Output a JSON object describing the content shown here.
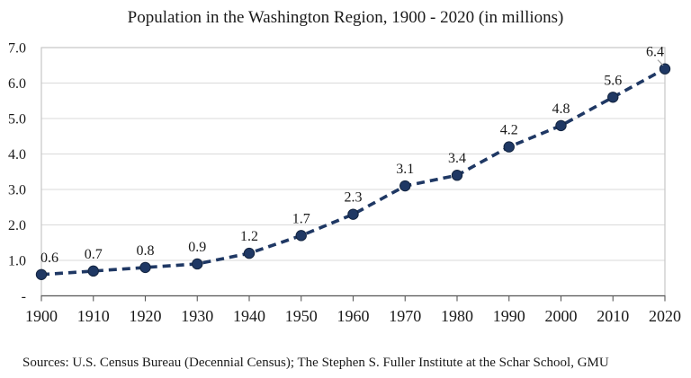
{
  "chart_data": {
    "type": "line",
    "title": "Population in the Washington Region, 1900 - 2020 (in millions)",
    "series_name": "Population",
    "categories": [
      "1900",
      "1910",
      "1920",
      "1930",
      "1940",
      "1950",
      "1960",
      "1970",
      "1980",
      "1990",
      "2000",
      "2010",
      "2020"
    ],
    "values": [
      0.6,
      0.7,
      0.8,
      0.9,
      1.2,
      1.7,
      2.3,
      3.1,
      3.4,
      4.2,
      4.8,
      5.6,
      6.4
    ],
    "data_labels": [
      "0.6",
      "0.7",
      "0.8",
      "0.9",
      "1.2",
      "1.7",
      "2.3",
      "3.1",
      "3.4",
      "4.2",
      "4.8",
      "5.6",
      "6.4"
    ],
    "ylim": [
      0,
      7
    ],
    "y_tick_labels": [
      "-",
      "1.0",
      "2.0",
      "3.0",
      "4.0",
      "5.0",
      "6.0",
      "7.0"
    ],
    "grid": "horizontal",
    "legend": "none",
    "line_style": "dashed",
    "marker": "circle"
  },
  "source_note": "Sources: U.S. Census Bureau (Decennial Census); The Stephen S. Fuller Institute at the Schar School, GMU",
  "colors": {
    "line": "#1f3864",
    "marker_fill": "#1f3864",
    "marker_edge": "#13243f",
    "gridline": "#d9d9d9",
    "plot_border": "#c6c6c6",
    "axis": "#595959",
    "text": "#1a1a1a",
    "leader_line": "#a6a6a6",
    "background": "#ffffff"
  }
}
